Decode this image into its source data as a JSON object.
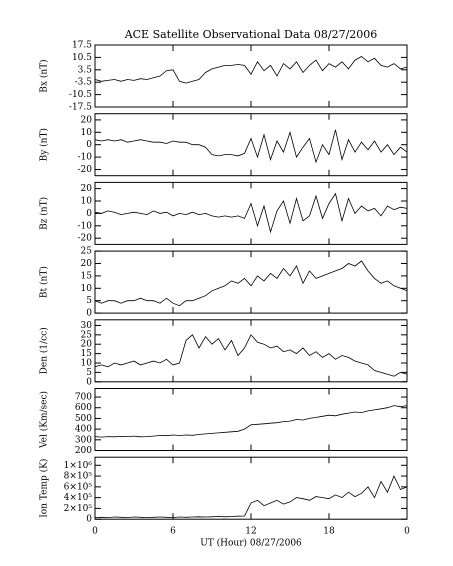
{
  "chart_data": [
    {
      "type": "line",
      "title": "ACE Satellite Observational Data  08/27/2006",
      "ylabel": "Bx (nT)",
      "color": "#000000",
      "x": [
        0,
        0.5,
        1,
        1.5,
        2,
        2.5,
        3,
        3.5,
        4,
        4.5,
        5,
        5.5,
        6,
        6.5,
        7,
        7.5,
        8,
        8.5,
        9,
        9.5,
        10,
        10.5,
        11,
        11.5,
        12,
        12.5,
        13,
        13.5,
        14,
        14.5,
        15,
        15.5,
        16,
        16.5,
        17,
        17.5,
        18,
        18.5,
        19,
        19.5,
        20,
        20.5,
        21,
        21.5,
        22,
        22.5,
        23,
        23.5,
        24
      ],
      "values": [
        -2,
        -3,
        -2.5,
        -2,
        -3,
        -2,
        -2.5,
        -1.5,
        -2,
        -1,
        0,
        3,
        3.5,
        -3,
        -4,
        -3,
        -2,
        2,
        4,
        5,
        6,
        6,
        6.5,
        6,
        1,
        8,
        3,
        6,
        0,
        7,
        4,
        8,
        2,
        6,
        9,
        3,
        7,
        5,
        8,
        4,
        9,
        11,
        8,
        10,
        6,
        5,
        7,
        4,
        5
      ],
      "xlim": [
        0,
        24
      ],
      "xticks": [
        0,
        6,
        12,
        18,
        {
          "value": 24,
          "label": "0"
        }
      ],
      "ylim": [
        -17.5,
        17.5
      ],
      "yticks": [
        17.5,
        10.5,
        3.5,
        -3.5,
        -10.5,
        -17.5
      ]
    },
    {
      "type": "line",
      "ylabel": "By (nT)",
      "color": "#000000",
      "x": [
        0,
        0.5,
        1,
        1.5,
        2,
        2.5,
        3,
        3.5,
        4,
        4.5,
        5,
        5.5,
        6,
        6.5,
        7,
        7.5,
        8,
        8.5,
        9,
        9.5,
        10,
        10.5,
        11,
        11.5,
        12,
        12.5,
        13,
        13.5,
        14,
        14.5,
        15,
        15.5,
        16,
        16.5,
        17,
        17.5,
        18,
        18.5,
        19,
        19.5,
        20,
        20.5,
        21,
        21.5,
        22,
        22.5,
        23,
        23.5,
        24
      ],
      "values": [
        4,
        3,
        4,
        3,
        4,
        2,
        3,
        4,
        3,
        2,
        2,
        1,
        3,
        2,
        2,
        0,
        0,
        -2,
        -8,
        -9,
        -8,
        -8,
        -9,
        -7,
        5,
        -10,
        8,
        -12,
        3,
        -6,
        10,
        -10,
        -2,
        5,
        -14,
        0,
        -8,
        12,
        -12,
        4,
        -6,
        2,
        -4,
        3,
        -6,
        0,
        -8,
        -2,
        -6
      ],
      "xlim": [
        0,
        24
      ],
      "xticks": [
        0,
        6,
        12,
        18,
        {
          "value": 24,
          "label": "0"
        }
      ],
      "ylim": [
        -25,
        25
      ],
      "yticks": [
        20,
        10,
        0,
        -10,
        -20
      ]
    },
    {
      "type": "line",
      "ylabel": "Bz (nT)",
      "color": "#000000",
      "x": [
        0,
        0.5,
        1,
        1.5,
        2,
        2.5,
        3,
        3.5,
        4,
        4.5,
        5,
        5.5,
        6,
        6.5,
        7,
        7.5,
        8,
        8.5,
        9,
        9.5,
        10,
        10.5,
        11,
        11.5,
        12,
        12.5,
        13,
        13.5,
        14,
        14.5,
        15,
        15.5,
        16,
        16.5,
        17,
        17.5,
        18,
        18.5,
        19,
        19.5,
        20,
        20.5,
        21,
        21.5,
        22,
        22.5,
        23,
        23.5,
        24
      ],
      "values": [
        1,
        0,
        2,
        1,
        -1,
        0,
        1,
        0,
        -1,
        2,
        0,
        1,
        -2,
        0,
        -1,
        1,
        -1,
        0,
        -2,
        -3,
        -2,
        -3,
        -2,
        -4,
        8,
        -10,
        6,
        -15,
        2,
        10,
        -8,
        12,
        -6,
        -2,
        14,
        -4,
        8,
        16,
        -6,
        12,
        0,
        6,
        2,
        4,
        -2,
        6,
        3,
        5,
        4
      ],
      "xlim": [
        0,
        24
      ],
      "xticks": [
        0,
        6,
        12,
        18,
        {
          "value": 24,
          "label": "0"
        }
      ],
      "ylim": [
        -25,
        25
      ],
      "yticks": [
        20,
        10,
        0,
        -10,
        -20
      ]
    },
    {
      "type": "line",
      "ylabel": "Bt (nT)",
      "color": "#000000",
      "x": [
        0,
        0.5,
        1,
        1.5,
        2,
        2.5,
        3,
        3.5,
        4,
        4.5,
        5,
        5.5,
        6,
        6.5,
        7,
        7.5,
        8,
        8.5,
        9,
        9.5,
        10,
        10.5,
        11,
        11.5,
        12,
        12.5,
        13,
        13.5,
        14,
        14.5,
        15,
        15.5,
        16,
        16.5,
        17,
        17.5,
        18,
        18.5,
        19,
        19.5,
        20,
        20.5,
        21,
        21.5,
        22,
        22.5,
        23,
        23.5,
        24
      ],
      "values": [
        5,
        4,
        5,
        5,
        4,
        5,
        5,
        6,
        5,
        5,
        4,
        6,
        4,
        3,
        5,
        5,
        6,
        7,
        9,
        10,
        11,
        13,
        12,
        14,
        11,
        15,
        13,
        16,
        14,
        18,
        15,
        19,
        12,
        17,
        14,
        15,
        16,
        17,
        18,
        20,
        19,
        21,
        17,
        14,
        12,
        13,
        11,
        10,
        9
      ],
      "xlim": [
        0,
        24
      ],
      "xticks": [
        0,
        6,
        12,
        18,
        {
          "value": 24,
          "label": "0"
        }
      ],
      "ylim": [
        0,
        25
      ],
      "yticks": [
        0,
        5,
        10,
        15,
        20,
        25
      ]
    },
    {
      "type": "line",
      "ylabel": "Den (1/cc)",
      "color": "#000000",
      "x": [
        0,
        0.5,
        1,
        1.5,
        2,
        2.5,
        3,
        3.5,
        4,
        4.5,
        5,
        5.5,
        6,
        6.5,
        7,
        7.5,
        8,
        8.5,
        9,
        9.5,
        10,
        10.5,
        11,
        11.5,
        12,
        12.5,
        13,
        13.5,
        14,
        14.5,
        15,
        15.5,
        16,
        16.5,
        17,
        17.5,
        18,
        18.5,
        19,
        19.5,
        20,
        20.5,
        21,
        21.5,
        22,
        22.5,
        23,
        23.5,
        24
      ],
      "values": [
        8,
        9,
        8,
        10,
        9,
        10,
        11,
        9,
        10,
        11,
        10,
        12,
        9,
        10,
        22,
        25,
        18,
        24,
        20,
        23,
        17,
        22,
        14,
        18,
        25,
        21,
        20,
        18,
        19,
        16,
        17,
        15,
        18,
        14,
        16,
        13,
        15,
        12,
        14,
        13,
        11,
        10,
        9,
        6,
        5,
        4,
        3,
        5,
        4
      ],
      "xlim": [
        0,
        24
      ],
      "xticks": [
        0,
        6,
        12,
        18,
        {
          "value": 24,
          "label": "0"
        }
      ],
      "ylim": [
        0,
        33
      ],
      "yticks": [
        0,
        5,
        10,
        15,
        20,
        25,
        30
      ]
    },
    {
      "type": "line",
      "ylabel": "Vel (Km/sec)",
      "color": "#000000",
      "x": [
        0,
        0.5,
        1,
        1.5,
        2,
        2.5,
        3,
        3.5,
        4,
        4.5,
        5,
        5.5,
        6,
        6.5,
        7,
        7.5,
        8,
        8.5,
        9,
        9.5,
        10,
        10.5,
        11,
        11.5,
        12,
        12.5,
        13,
        13.5,
        14,
        14.5,
        15,
        15.5,
        16,
        16.5,
        17,
        17.5,
        18,
        18.5,
        19,
        19.5,
        20,
        20.5,
        21,
        21.5,
        22,
        22.5,
        23,
        23.5,
        24
      ],
      "values": [
        330,
        325,
        330,
        328,
        332,
        330,
        335,
        328,
        330,
        335,
        340,
        338,
        345,
        340,
        345,
        342,
        350,
        355,
        360,
        365,
        370,
        375,
        380,
        400,
        440,
        445,
        450,
        455,
        460,
        470,
        475,
        490,
        485,
        500,
        510,
        520,
        530,
        525,
        540,
        550,
        560,
        555,
        570,
        580,
        590,
        600,
        620,
        610,
        620
      ],
      "xlim": [
        0,
        24
      ],
      "xticks": [
        0,
        6,
        12,
        18,
        {
          "value": 24,
          "label": "0"
        }
      ],
      "ylim": [
        200,
        780
      ],
      "yticks": [
        200,
        300,
        400,
        500,
        600,
        700
      ]
    },
    {
      "type": "line",
      "ylabel": "Ion Temp (K)",
      "xlabel": "UT (Hour)  08/27/2006",
      "color": "#000000",
      "x": [
        0,
        0.5,
        1,
        1.5,
        2,
        2.5,
        3,
        3.5,
        4,
        4.5,
        5,
        5.5,
        6,
        6.5,
        7,
        7.5,
        8,
        8.5,
        9,
        9.5,
        10,
        10.5,
        11,
        11.5,
        12,
        12.5,
        13,
        13.5,
        14,
        14.5,
        15,
        15.5,
        16,
        16.5,
        17,
        17.5,
        18,
        18.5,
        19,
        19.5,
        20,
        20.5,
        21,
        21.5,
        22,
        22.5,
        23,
        23.5,
        24
      ],
      "values": [
        30000,
        35000,
        30000,
        40000,
        35000,
        30000,
        40000,
        35000,
        30000,
        35000,
        40000,
        35000,
        30000,
        40000,
        35000,
        40000,
        45000,
        40000,
        45000,
        50000,
        45000,
        50000,
        55000,
        60000,
        300000,
        350000,
        250000,
        300000,
        350000,
        280000,
        320000,
        400000,
        380000,
        350000,
        420000,
        400000,
        380000,
        450000,
        400000,
        500000,
        420000,
        480000,
        600000,
        400000,
        700000,
        500000,
        800000,
        550000,
        600000
      ],
      "xlim": [
        0,
        24
      ],
      "xticks": [
        0,
        6,
        12,
        18,
        {
          "value": 24,
          "label": "0"
        }
      ],
      "ylim": [
        0,
        1150000
      ],
      "yticks": [
        0,
        {
          "value": 200000,
          "label": "2×10⁵"
        },
        {
          "value": 400000,
          "label": "4×10⁵"
        },
        {
          "value": 600000,
          "label": "6×10⁵"
        },
        {
          "value": 800000,
          "label": "8×10⁵"
        },
        {
          "value": 1000000,
          "label": "1×10⁶"
        }
      ]
    }
  ]
}
